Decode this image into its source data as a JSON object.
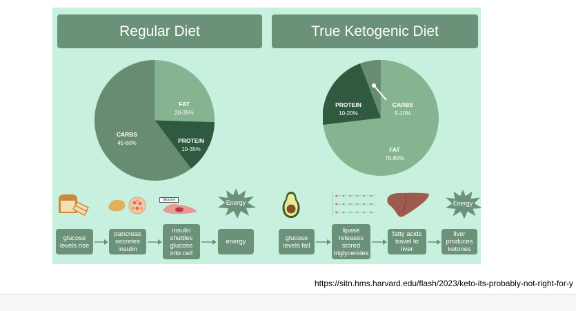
{
  "colors": {
    "panel_bg": "#c7f0df",
    "box_bg": "#6b9178",
    "pie_dark": "#2f5a3f",
    "pie_mid": "#688c72",
    "pie_light": "#86b491"
  },
  "left": {
    "title": "Regular Diet",
    "pie": [
      {
        "label": "FAT",
        "range": "20-35%"
      },
      {
        "label": "PROTEIN",
        "range": "10-35%"
      },
      {
        "label": "CARBS",
        "range": "45-60%"
      }
    ],
    "icons": [
      "bread-icon",
      "pancreas-icon",
      "cell-icon",
      "energy-burst-icon"
    ],
    "glucose_tag": "Glucose",
    "energy_label": "Energy",
    "steps": [
      "glucose\nlevels rise",
      "pancreas\nsecretes\ninsulin",
      "insulin\nshuttles\nglucose\ninto cell",
      "energy"
    ]
  },
  "right": {
    "title": "True Ketogenic Diet",
    "pie": [
      {
        "label": "CARBS",
        "range": "5-10%"
      },
      {
        "label": "PROTEIN",
        "range": "10-20%"
      },
      {
        "label": "FAT",
        "range": "70-80%"
      }
    ],
    "icons": [
      "avocado-icon",
      "triglyceride-molecule-icon",
      "liver-icon",
      "energy-burst-icon"
    ],
    "energy_label": "Energy",
    "steps": [
      "glucose\nlevels fall",
      "lipase\nreleases\nstored\ntriglycerides",
      "fatty acids\ntravel to\nliver",
      "liver\nproduces\nketones"
    ]
  },
  "source_url": "https://sitn.hms.harvard.edu/flash/2023/keto-its-probably-not-right-for-y"
}
